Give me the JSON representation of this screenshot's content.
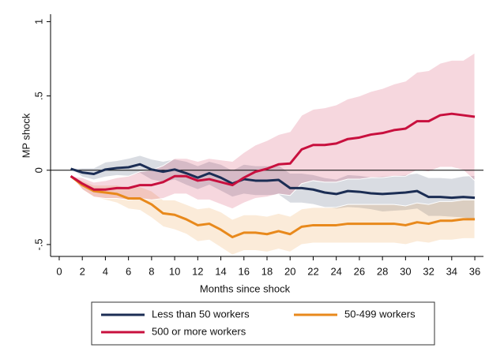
{
  "chart_data": {
    "type": "line",
    "x_label": "Months since shock",
    "y_label": "MP shock",
    "x": [
      1,
      2,
      3,
      4,
      5,
      6,
      7,
      8,
      9,
      10,
      11,
      12,
      13,
      14,
      15,
      16,
      17,
      18,
      19,
      20,
      21,
      22,
      23,
      24,
      25,
      26,
      27,
      28,
      29,
      30,
      31,
      32,
      33,
      34,
      35,
      36
    ],
    "xlim": [
      -0.75,
      36.75
    ],
    "xticks": [
      0,
      2,
      4,
      6,
      8,
      10,
      12,
      14,
      16,
      18,
      20,
      22,
      24,
      26,
      28,
      30,
      32,
      34,
      36
    ],
    "ylim": [
      -0.58,
      1.05
    ],
    "yticks": [
      {
        "value": -0.5,
        "label": "-.5"
      },
      0,
      {
        "value": 0.5,
        "label": ".5"
      },
      1
    ],
    "reference_line": 0,
    "grid": false,
    "legend": "bottom",
    "series": [
      {
        "name": "Less than 50 workers",
        "color": "#1b2d54",
        "band_color": "#1b2d54",
        "values": [
          0.01,
          -0.015,
          -0.025,
          0.005,
          0.015,
          0.02,
          0.04,
          0.005,
          -0.01,
          0.005,
          -0.02,
          -0.05,
          -0.02,
          -0.05,
          -0.09,
          -0.06,
          -0.07,
          -0.07,
          -0.065,
          -0.12,
          -0.12,
          -0.13,
          -0.15,
          -0.16,
          -0.14,
          -0.145,
          -0.155,
          -0.16,
          -0.155,
          -0.15,
          -0.14,
          -0.18,
          -0.18,
          -0.185,
          -0.18,
          -0.185
        ],
        "upper": [
          0.01,
          0.015,
          0.015,
          0.055,
          0.065,
          0.08,
          0.1,
          0.075,
          0.06,
          0.075,
          0.06,
          0.03,
          0.06,
          0.04,
          0,
          0.04,
          0.03,
          0.03,
          0.035,
          -0.02,
          -0.02,
          -0.03,
          -0.05,
          -0.06,
          -0.03,
          -0.035,
          -0.045,
          -0.04,
          -0.035,
          -0.03,
          -0.02,
          -0.05,
          -0.05,
          -0.055,
          -0.04,
          -0.035
        ],
        "lower": [
          0.01,
          -0.045,
          -0.065,
          -0.045,
          -0.035,
          -0.04,
          -0.02,
          -0.065,
          -0.08,
          -0.065,
          -0.1,
          -0.13,
          -0.1,
          -0.14,
          -0.18,
          -0.16,
          -0.17,
          -0.17,
          -0.165,
          -0.22,
          -0.22,
          -0.23,
          -0.25,
          -0.26,
          -0.25,
          -0.255,
          -0.265,
          -0.28,
          -0.275,
          -0.27,
          -0.26,
          -0.31,
          -0.31,
          -0.315,
          -0.32,
          -0.335
        ]
      },
      {
        "name": "50-499 workers",
        "color": "#e8891c",
        "band_color": "#e8891c",
        "values": [
          -0.04,
          -0.1,
          -0.14,
          -0.15,
          -0.16,
          -0.19,
          -0.19,
          -0.23,
          -0.29,
          -0.3,
          -0.33,
          -0.37,
          -0.36,
          -0.4,
          -0.45,
          -0.42,
          -0.42,
          -0.43,
          -0.41,
          -0.43,
          -0.38,
          -0.37,
          -0.37,
          -0.37,
          -0.36,
          -0.36,
          -0.36,
          -0.36,
          -0.36,
          -0.37,
          -0.35,
          -0.36,
          -0.34,
          -0.34,
          -0.33,
          -0.33
        ],
        "upper": [
          -0.04,
          -0.07,
          -0.1,
          -0.1,
          -0.1,
          -0.12,
          -0.11,
          -0.14,
          -0.2,
          -0.2,
          -0.23,
          -0.26,
          -0.25,
          -0.28,
          -0.33,
          -0.3,
          -0.3,
          -0.31,
          -0.29,
          -0.31,
          -0.26,
          -0.25,
          -0.25,
          -0.25,
          -0.23,
          -0.23,
          -0.23,
          -0.23,
          -0.23,
          -0.24,
          -0.22,
          -0.23,
          -0.21,
          -0.21,
          -0.2,
          -0.2
        ],
        "lower": [
          -0.04,
          -0.13,
          -0.18,
          -0.2,
          -0.22,
          -0.26,
          -0.27,
          -0.32,
          -0.38,
          -0.4,
          -0.43,
          -0.48,
          -0.47,
          -0.52,
          -0.57,
          -0.54,
          -0.54,
          -0.55,
          -0.53,
          -0.55,
          -0.5,
          -0.49,
          -0.49,
          -0.49,
          -0.49,
          -0.49,
          -0.49,
          -0.49,
          -0.49,
          -0.5,
          -0.48,
          -0.49,
          -0.47,
          -0.47,
          -0.46,
          -0.46
        ]
      },
      {
        "name": "500 or more workers",
        "color": "#c8103e",
        "band_color": "#c8103e",
        "values": [
          -0.04,
          -0.09,
          -0.13,
          -0.13,
          -0.12,
          -0.12,
          -0.1,
          -0.1,
          -0.08,
          -0.04,
          -0.04,
          -0.07,
          -0.06,
          -0.08,
          -0.1,
          -0.05,
          -0.01,
          0.01,
          0.04,
          0.045,
          0.14,
          0.17,
          0.17,
          0.18,
          0.21,
          0.22,
          0.24,
          0.25,
          0.27,
          0.28,
          0.33,
          0.33,
          0.37,
          0.38,
          0.37,
          0.36
        ],
        "upper": [
          -0.04,
          -0.05,
          -0.08,
          -0.07,
          -0.05,
          -0.04,
          -0.01,
          0,
          0.03,
          0.08,
          0.08,
          0.06,
          0.08,
          0.07,
          0.06,
          0.12,
          0.17,
          0.2,
          0.24,
          0.26,
          0.37,
          0.41,
          0.42,
          0.44,
          0.48,
          0.5,
          0.53,
          0.55,
          0.58,
          0.6,
          0.66,
          0.67,
          0.72,
          0.74,
          0.74,
          0.79
        ],
        "lower": [
          -0.04,
          -0.13,
          -0.18,
          -0.19,
          -0.19,
          -0.2,
          -0.19,
          -0.2,
          -0.19,
          -0.16,
          -0.16,
          -0.2,
          -0.2,
          -0.23,
          -0.26,
          -0.22,
          -0.19,
          -0.18,
          -0.16,
          -0.17,
          -0.09,
          -0.07,
          -0.08,
          -0.08,
          -0.06,
          -0.06,
          -0.05,
          -0.05,
          -0.04,
          -0.04,
          0,
          -0.01,
          0.02,
          0.02,
          0,
          -0.07
        ]
      }
    ]
  }
}
